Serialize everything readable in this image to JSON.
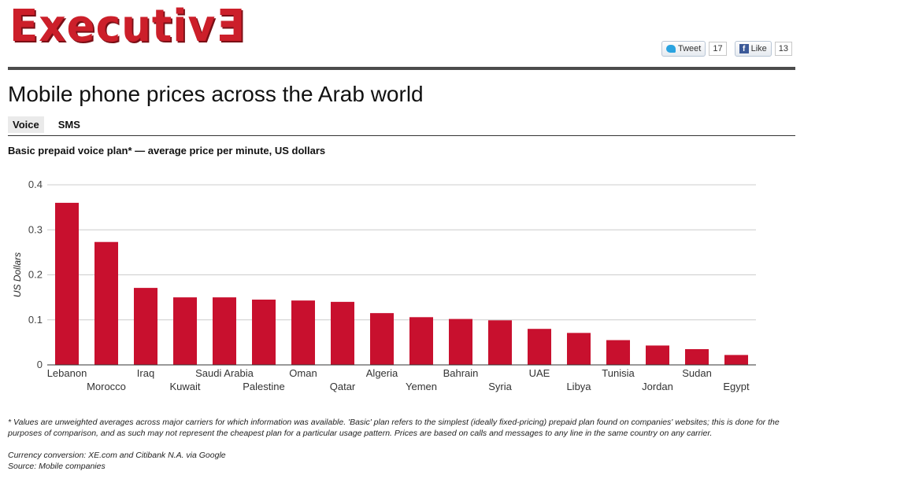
{
  "header": {
    "logo_text": "ExecutivƎ",
    "tweet_label": "Tweet",
    "tweet_count": "17",
    "like_label": "Like",
    "like_count": "13"
  },
  "page": {
    "title": "Mobile phone prices across the Arab world",
    "tabs": [
      {
        "label": "Voice",
        "active": true
      },
      {
        "label": "SMS",
        "active": false
      }
    ],
    "subtitle": "Basic prepaid voice plan* — average price per minute, US dollars"
  },
  "chart_data": {
    "type": "bar",
    "title": "",
    "xlabel": "",
    "ylabel": "US Dollars",
    "ylim": [
      0,
      0.4
    ],
    "yticks": [
      "0",
      "0.1",
      "0.2",
      "0.3",
      "0.4"
    ],
    "grid": true,
    "bar_color": "#c8102e",
    "categories": [
      "Lebanon",
      "Morocco",
      "Iraq",
      "Kuwait",
      "Saudi Arabia",
      "Palestine",
      "Oman",
      "Qatar",
      "Algeria",
      "Yemen",
      "Bahrain",
      "Syria",
      "UAE",
      "Libya",
      "Tunisia",
      "Jordan",
      "Sudan",
      "Egypt"
    ],
    "values": [
      0.36,
      0.273,
      0.171,
      0.15,
      0.15,
      0.145,
      0.143,
      0.14,
      0.115,
      0.106,
      0.102,
      0.099,
      0.08,
      0.071,
      0.055,
      0.043,
      0.035,
      0.022
    ]
  },
  "notes": {
    "footnote": "* Values are unweighted averages across major carriers for which information was available. 'Basic' plan refers to the simplest (ideally fixed-pricing) prepaid plan found on companies' websites; this is done for the purposes of comparison, and as such may not represent the cheapest plan for a particular usage pattern. Prices are based on calls and messages to any line in the same country on any carrier.",
    "currency": "Currency conversion: XE.com and Citibank N.A. via Google",
    "source": "Source: Mobile companies"
  }
}
